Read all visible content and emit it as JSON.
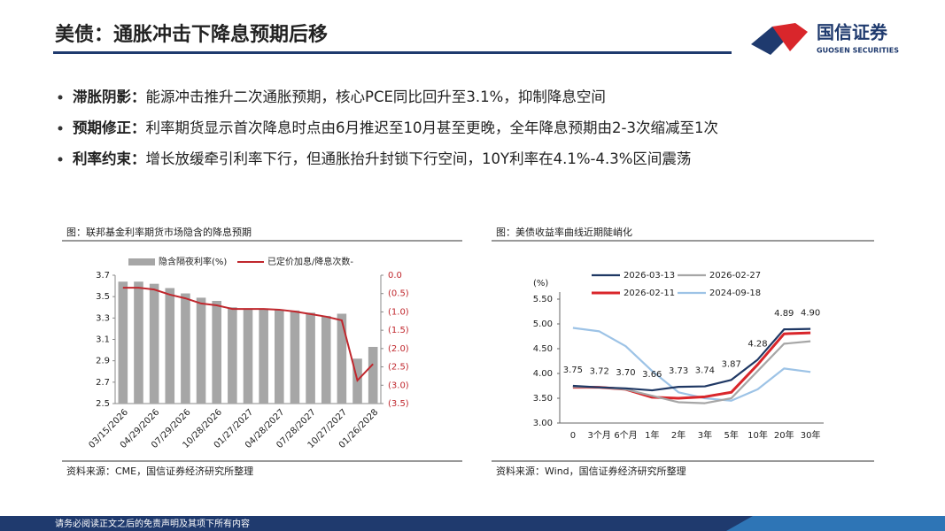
{
  "header": {
    "title": "美债：通胀冲击下降息预期后移",
    "logo": {
      "name": "国信证券",
      "english": "GUOSEN SECURITIES"
    }
  },
  "bullets": [
    {
      "label": "滞胀阴影：",
      "text": "能源冲击推升二次通胀预期，核心PCE同比回升至3.1%，抑制降息空间"
    },
    {
      "label": "预期修正：",
      "text": "利率期货显示首次降息时点由6月推迟至10月甚至更晚，全年降息预期由2-3次缩减至1次"
    },
    {
      "label": "利率约束：",
      "text": "增长放缓牵引利率下行，但通胀抬升封锁下行空间，10Y利率在4.1%-4.3%区间震荡"
    }
  ],
  "chart_data": [
    {
      "type": "combo",
      "title": "图：联邦基金利率期货市场隐含的降息预期",
      "source": "资料来源：CME，国信证券经济研究所整理",
      "categories": [
        "03/15/2026",
        null,
        "04/29/2026",
        null,
        "07/29/2026",
        null,
        "10/28/2026",
        null,
        "01/27/2027",
        null,
        "04/28/2027",
        null,
        "07/28/2027",
        null,
        "10/27/2027",
        null,
        "01/26/2028"
      ],
      "series": [
        {
          "name": "隐含隔夜利率(%)",
          "type": "bar",
          "color": "#a6a6a6",
          "values": [
            3.64,
            3.64,
            3.62,
            3.58,
            3.53,
            3.49,
            3.46,
            3.4,
            3.39,
            3.38,
            3.38,
            3.37,
            3.35,
            3.32,
            3.34,
            2.92,
            3.03
          ]
        },
        {
          "name": "已定价加息/降息次数-",
          "type": "line",
          "axis": "y2",
          "color": "#c0272d",
          "values": [
            -0.34,
            -0.34,
            -0.39,
            -0.53,
            -0.63,
            -0.77,
            -0.82,
            -0.92,
            -0.92,
            -0.92,
            -0.94,
            -0.99,
            -1.06,
            -1.13,
            -1.23,
            -2.87,
            -2.42
          ]
        }
      ],
      "ylim": [
        2.5,
        3.7
      ],
      "yticks": [
        2.5,
        2.7,
        2.9,
        3.1,
        3.3,
        3.5,
        3.7
      ],
      "y2lim": [
        -3.5,
        0
      ],
      "y2ticks": [
        {
          "value": 0,
          "label": "0.0"
        },
        {
          "value": -0.5,
          "label": "(0.5)"
        },
        {
          "value": -1,
          "label": "(1.0)"
        },
        {
          "value": -1.5,
          "label": "(1.5)"
        },
        {
          "value": -2,
          "label": "(2.0)"
        },
        {
          "value": -2.5,
          "label": "(2.5)"
        },
        {
          "value": -3,
          "label": "(3.0)"
        },
        {
          "value": -3.5,
          "label": "(3.5)"
        }
      ],
      "legend": "top"
    },
    {
      "type": "line",
      "title": "图：美债收益率曲线近期陡峭化",
      "source": "资料来源：Wind，国信证券经济研究所整理",
      "ylabel": "(%)",
      "categories": [
        "0",
        "3个月",
        "6个月",
        "1年",
        "2年",
        "3年",
        "5年",
        "10年",
        "20年",
        "30年"
      ],
      "series": [
        {
          "name": "2026-03-13",
          "color": "#1f3864",
          "values": [
            3.75,
            3.72,
            3.7,
            3.66,
            3.73,
            3.74,
            3.87,
            4.28,
            4.89,
            4.9
          ],
          "value_labels": [
            "3.75",
            "3.72",
            "3.70",
            "3.66",
            "3.73",
            "3.74",
            "3.87",
            "4.28",
            "4.89",
            "4.90"
          ]
        },
        {
          "name": "2026-02-27",
          "color": "#a6a6a6",
          "values": [
            3.73,
            3.72,
            3.68,
            3.55,
            3.42,
            3.4,
            3.5,
            4.05,
            4.6,
            4.65
          ]
        },
        {
          "name": "2026-02-11",
          "color": "#d9262b",
          "values": [
            3.72,
            3.72,
            3.68,
            3.52,
            3.5,
            3.53,
            3.62,
            4.18,
            4.8,
            4.82
          ]
        },
        {
          "name": "2024-09-18",
          "color": "#9dc3e6",
          "values": [
            4.92,
            4.85,
            4.55,
            4.05,
            3.62,
            3.5,
            3.45,
            3.68,
            4.1,
            4.03
          ]
        }
      ],
      "ylim": [
        3,
        5.5
      ],
      "yticks": [
        {
          "value": 3,
          "label": "3.00"
        },
        {
          "value": 3.5,
          "label": "3.50"
        },
        {
          "value": 4,
          "label": "4.00"
        },
        {
          "value": 4.5,
          "label": "4.50"
        },
        {
          "value": 5,
          "label": "5.00"
        },
        {
          "value": 5.5,
          "label": "5.50"
        }
      ],
      "legend": "top"
    }
  ],
  "footer": {
    "text": "请务必阅读正文之后的免责声明及其项下所有内容"
  }
}
